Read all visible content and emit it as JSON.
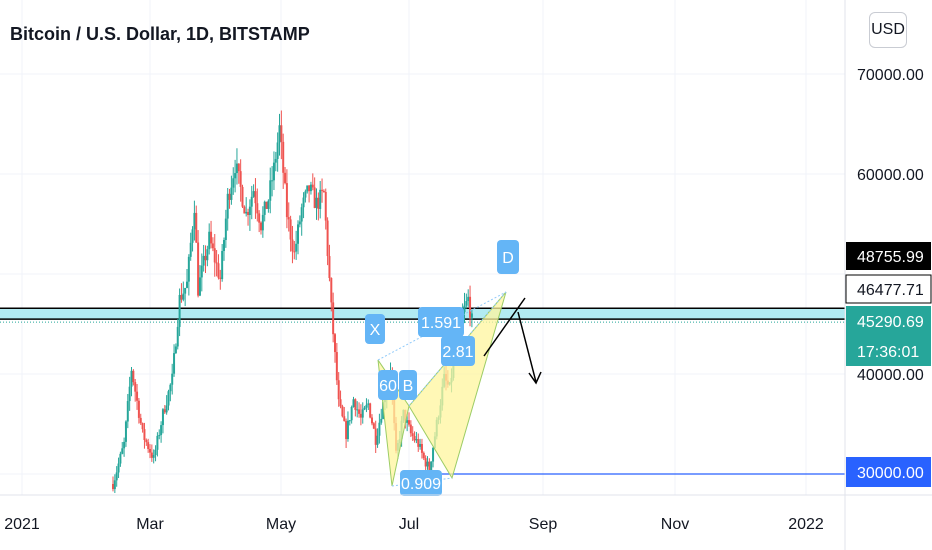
{
  "chart_data": {
    "type": "candlestick",
    "title": "Bitcoin / U.S. Dollar, 1D, BITSTAMP",
    "currency": "USD",
    "x_ticks": [
      "2021",
      "Mar",
      "May",
      "Jul",
      "Sep",
      "Nov",
      "2022"
    ],
    "y_ticks": [
      "70000.00",
      "60000.00",
      "40000.00"
    ],
    "ylim": [
      27500,
      75000
    ],
    "price_tags": [
      {
        "label": "48755.99",
        "value": 48755.99,
        "style": "black"
      },
      {
        "label": "46477.71",
        "value": 46477.71,
        "style": "white"
      },
      {
        "label": "45290.69",
        "value": 45290.69,
        "style": "teal"
      },
      {
        "label": "17:36:01",
        "style": "teal-sub"
      },
      {
        "label": "30000.00",
        "value": 30000,
        "style": "blue"
      }
    ],
    "resistance_zone": [
      45290.69,
      46477.71
    ],
    "support_level": 30000,
    "pattern_labels": [
      "X",
      "B",
      "D",
      "1.591",
      "2.81",
      "0.909",
      "60"
    ],
    "colors": {
      "up": "#26a69a",
      "down": "#ef5350",
      "zone": "#b2ebf2",
      "pattern_fill": "#fff59d",
      "pattern_label": "#64b5f6",
      "support": "#2962ff",
      "price_tag": "#26a69a"
    },
    "anchors": [
      {
        "i": 0,
        "p": 29000
      },
      {
        "i": 6,
        "p": 33000
      },
      {
        "i": 10,
        "p": 40500
      },
      {
        "i": 16,
        "p": 34000
      },
      {
        "i": 22,
        "p": 31500
      },
      {
        "i": 27,
        "p": 36000
      },
      {
        "i": 32,
        "p": 39500
      },
      {
        "i": 36,
        "p": 47500
      },
      {
        "i": 40,
        "p": 49000
      },
      {
        "i": 44,
        "p": 57000
      },
      {
        "i": 46,
        "p": 48500
      },
      {
        "i": 52,
        "p": 53500
      },
      {
        "i": 58,
        "p": 49500
      },
      {
        "i": 62,
        "p": 57500
      },
      {
        "i": 66,
        "p": 61000
      },
      {
        "i": 72,
        "p": 56000
      },
      {
        "i": 76,
        "p": 58500
      },
      {
        "i": 80,
        "p": 55000
      },
      {
        "i": 84,
        "p": 57500
      },
      {
        "i": 87,
        "p": 60500
      },
      {
        "i": 90,
        "p": 64500
      },
      {
        "i": 94,
        "p": 56000
      },
      {
        "i": 98,
        "p": 52000
      },
      {
        "i": 102,
        "p": 56500
      },
      {
        "i": 106,
        "p": 58500
      },
      {
        "i": 110,
        "p": 57000
      },
      {
        "i": 114,
        "p": 58000
      },
      {
        "i": 118,
        "p": 46500
      },
      {
        "i": 122,
        "p": 37000
      },
      {
        "i": 126,
        "p": 34000
      },
      {
        "i": 130,
        "p": 37500
      },
      {
        "i": 134,
        "p": 35500
      },
      {
        "i": 138,
        "p": 37000
      },
      {
        "i": 142,
        "p": 33500
      },
      {
        "i": 146,
        "p": 37000
      },
      {
        "i": 150,
        "p": 40500
      },
      {
        "i": 153,
        "p": 31800
      },
      {
        "i": 157,
        "p": 36000
      },
      {
        "i": 161,
        "p": 34000
      },
      {
        "i": 165,
        "p": 33000
      },
      {
        "i": 168,
        "p": 31500
      },
      {
        "i": 171,
        "p": 30500
      },
      {
        "i": 175,
        "p": 35000
      },
      {
        "i": 179,
        "p": 39500
      },
      {
        "i": 182,
        "p": 38500
      },
      {
        "i": 186,
        "p": 44000
      },
      {
        "i": 190,
        "p": 46500
      },
      {
        "i": 192,
        "p": 47500
      },
      {
        "i": 194,
        "p": 45300
      }
    ]
  }
}
